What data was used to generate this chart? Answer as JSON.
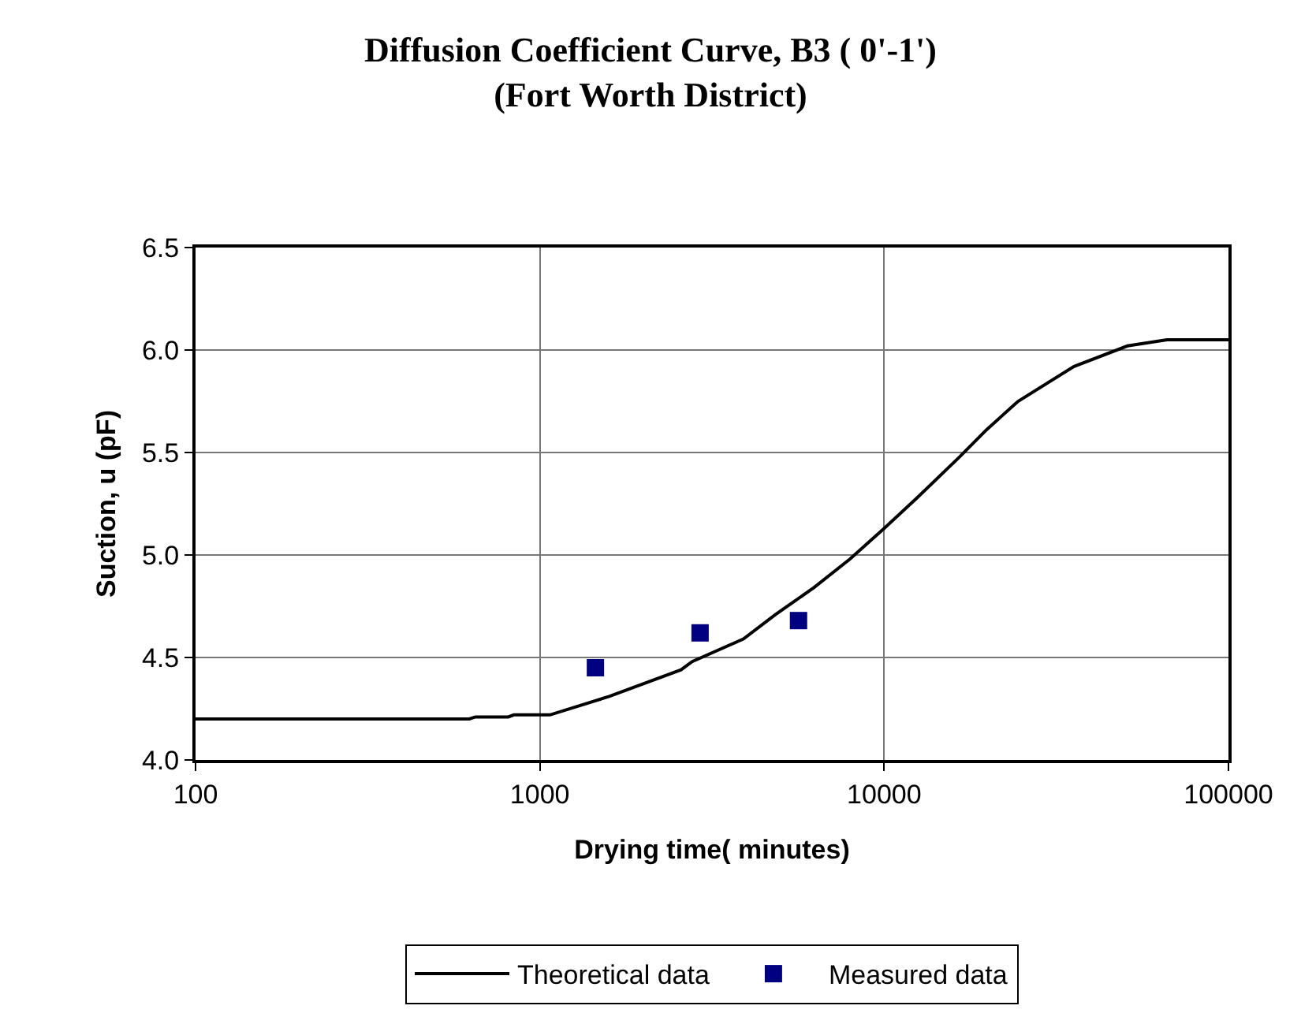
{
  "chart_data": {
    "type": "line",
    "title": "Diffusion Coefficient Curve, B3 ( 0'-1')\n(Fort Worth District)",
    "xlabel": "Drying time( minutes)",
    "ylabel": "Suction, u (pF)",
    "log": "x",
    "xlim": [
      100,
      100000
    ],
    "xticks": [
      100,
      1000,
      10000,
      100000
    ],
    "ylim": [
      4.0,
      6.5
    ],
    "yticks": [
      {
        "value": 4.0,
        "label": "4.0"
      },
      {
        "value": 4.5,
        "label": "4.5"
      },
      {
        "value": 5.0,
        "label": "5.0"
      },
      {
        "value": 5.5,
        "label": "5.5"
      },
      {
        "value": 6.0,
        "label": "6.0"
      },
      {
        "value": 6.5,
        "label": "6.5"
      }
    ],
    "grid": true,
    "legend": "bottom",
    "series": [
      {
        "name": "Theoretical data",
        "color": "#000000",
        "marker": "none",
        "line_style": "solid",
        "x": [
          100,
          624,
          650,
          810,
          840,
          1070,
          1590,
          2570,
          2770,
          3900,
          4840,
          6240,
          7950,
          10000,
          12480,
          16600,
          19800,
          24500,
          35600,
          50900,
          66300,
          100000
        ],
        "values": [
          4.2,
          4.2,
          4.21,
          4.21,
          4.22,
          4.22,
          4.31,
          4.44,
          4.48,
          4.59,
          4.71,
          4.84,
          4.98,
          5.13,
          5.28,
          5.48,
          5.61,
          5.75,
          5.92,
          6.02,
          6.05,
          6.05
        ]
      },
      {
        "name": "Measured data",
        "type": "scatter",
        "color": "#000080",
        "marker": "square",
        "x": [
          1450,
          2920,
          5640
        ],
        "values": [
          4.45,
          4.62,
          4.68
        ]
      }
    ]
  }
}
